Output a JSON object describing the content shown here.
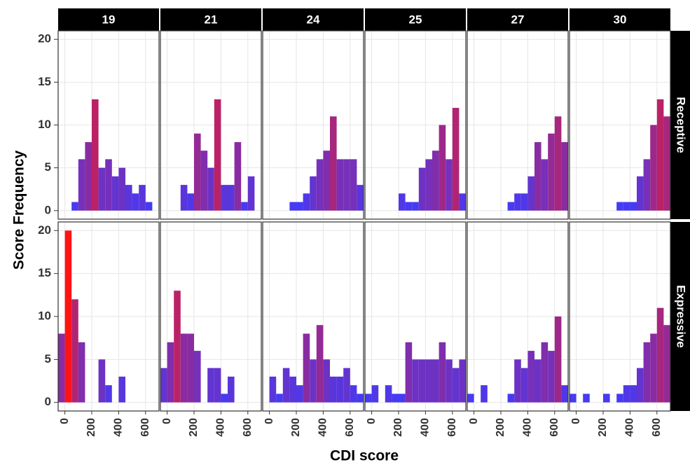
{
  "chart_data": {
    "type": "histogram",
    "x_label": "CDI score",
    "y_label": "Score Frequency",
    "columns": [
      "19",
      "21",
      "24",
      "25",
      "27",
      "30"
    ],
    "rows": [
      {
        "label": "Receptive",
        "panels": [
          [
            0,
            0,
            1,
            6,
            8,
            13,
            5,
            6,
            4,
            5,
            3,
            2,
            3,
            1,
            0
          ],
          [
            0,
            0,
            0,
            3,
            2,
            9,
            7,
            5,
            13,
            3,
            3,
            8,
            1,
            4,
            0
          ],
          [
            0,
            0,
            0,
            0,
            1,
            1,
            2,
            4,
            6,
            7,
            11,
            6,
            6,
            6,
            3
          ],
          [
            0,
            0,
            0,
            0,
            0,
            2,
            1,
            1,
            5,
            6,
            7,
            10,
            6,
            12,
            2
          ],
          [
            0,
            0,
            0,
            0,
            0,
            0,
            1,
            2,
            2,
            4,
            8,
            6,
            9,
            11,
            8
          ],
          [
            0,
            0,
            0,
            0,
            0,
            0,
            0,
            1,
            1,
            1,
            4,
            6,
            10,
            13,
            11
          ]
        ]
      },
      {
        "label": "Expressive",
        "panels": [
          [
            8,
            20,
            12,
            7,
            0,
            0,
            5,
            2,
            0,
            3,
            0,
            0,
            0,
            0,
            0
          ],
          [
            4,
            7,
            13,
            8,
            8,
            6,
            0,
            4,
            4,
            1,
            3,
            0,
            0,
            0,
            0
          ],
          [
            0,
            3,
            1,
            4,
            3,
            2,
            8,
            5,
            9,
            5,
            3,
            3,
            4,
            2,
            1
          ],
          [
            1,
            2,
            0,
            2,
            1,
            1,
            7,
            5,
            5,
            5,
            5,
            7,
            5,
            4,
            5
          ],
          [
            1,
            0,
            2,
            0,
            0,
            0,
            1,
            5,
            4,
            6,
            5,
            7,
            6,
            10,
            2
          ],
          [
            1,
            0,
            1,
            0,
            0,
            1,
            0,
            1,
            2,
            2,
            4,
            7,
            8,
            11,
            9
          ]
        ]
      }
    ],
    "bins": [
      -50,
      0,
      50,
      100,
      150,
      200,
      250,
      300,
      350,
      400,
      450,
      500,
      550,
      600,
      650,
      700
    ],
    "xlim": [
      -50,
      700
    ],
    "xticks": [
      0,
      200,
      400,
      600
    ],
    "ylim": [
      -1,
      21
    ],
    "yticks": [
      0,
      5,
      10,
      15,
      20
    ],
    "color_low": "#3c3cff",
    "color_high": "#ff1414",
    "grid": true
  }
}
